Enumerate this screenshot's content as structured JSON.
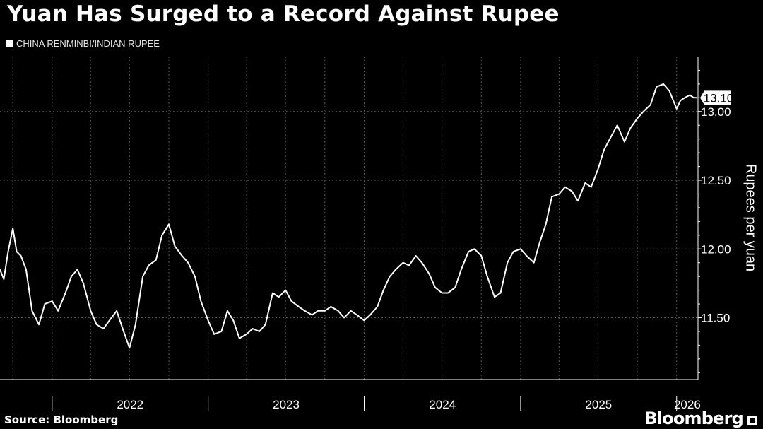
{
  "header": {
    "title": "Yuan Has Surged to a Record Against Rupee"
  },
  "footer": {
    "source": "Source: Bloomberg",
    "brand": "Bloomberg"
  },
  "chart_data": {
    "type": "line",
    "title": "Yuan Has Surged to a Record Against Rupee",
    "ylabel": "Rupees per yuan",
    "xlabel": "",
    "ylim": [
      11.05,
      13.4
    ],
    "xlim": [
      "2021-09-01",
      "2026-02-20"
    ],
    "x_tick_labels": [
      "2022",
      "2023",
      "2024",
      "2025",
      "2026"
    ],
    "y_ticks": [
      11.5,
      12.0,
      12.5,
      13.0
    ],
    "y_tick_labels": [
      "11.50",
      "12.00",
      "12.50",
      "13.00"
    ],
    "grid": true,
    "legend_position": "top-left",
    "last_value_label": "13.10",
    "colors": {
      "background": "#000000",
      "line": "#ffffff",
      "grid": "#5a5a5a"
    },
    "series": [
      {
        "name": "CHINA RENMINBI/INDIAN RUPEE",
        "x": [
          "2021-09-01",
          "2021-09-10",
          "2021-09-20",
          "2021-10-01",
          "2021-10-10",
          "2021-10-20",
          "2021-11-01",
          "2021-11-15",
          "2021-12-01",
          "2021-12-15",
          "2022-01-01",
          "2022-01-15",
          "2022-02-01",
          "2022-02-15",
          "2022-03-01",
          "2022-03-15",
          "2022-04-01",
          "2022-04-15",
          "2022-05-01",
          "2022-05-15",
          "2022-06-01",
          "2022-06-15",
          "2022-07-01",
          "2022-07-15",
          "2022-08-01",
          "2022-08-15",
          "2022-09-01",
          "2022-09-15",
          "2022-10-01",
          "2022-10-15",
          "2022-11-01",
          "2022-11-15",
          "2022-12-01",
          "2022-12-15",
          "2023-01-01",
          "2023-01-15",
          "2023-02-01",
          "2023-02-15",
          "2023-03-01",
          "2023-03-15",
          "2023-04-01",
          "2023-04-15",
          "2023-05-01",
          "2023-05-15",
          "2023-06-01",
          "2023-06-15",
          "2023-07-01",
          "2023-07-15",
          "2023-08-01",
          "2023-08-15",
          "2023-09-01",
          "2023-09-15",
          "2023-10-01",
          "2023-10-15",
          "2023-11-01",
          "2023-11-15",
          "2023-12-01",
          "2023-12-15",
          "2024-01-01",
          "2024-01-15",
          "2024-02-01",
          "2024-02-15",
          "2024-03-01",
          "2024-03-15",
          "2024-04-01",
          "2024-04-15",
          "2024-05-01",
          "2024-05-15",
          "2024-06-01",
          "2024-06-15",
          "2024-07-01",
          "2024-07-15",
          "2024-08-01",
          "2024-08-15",
          "2024-09-01",
          "2024-09-15",
          "2024-10-01",
          "2024-10-15",
          "2024-11-01",
          "2024-11-15",
          "2024-12-01",
          "2024-12-15",
          "2025-01-01",
          "2025-01-15",
          "2025-02-01",
          "2025-02-15",
          "2025-03-01",
          "2025-03-15",
          "2025-04-01",
          "2025-04-15",
          "2025-05-01",
          "2025-05-15",
          "2025-06-01",
          "2025-06-15",
          "2025-07-01",
          "2025-07-15",
          "2025-08-01",
          "2025-08-15",
          "2025-09-01",
          "2025-09-15",
          "2025-10-01",
          "2025-10-15",
          "2025-11-01",
          "2025-11-15",
          "2025-12-01",
          "2025-12-15",
          "2026-01-01",
          "2026-01-10",
          "2026-01-20",
          "2026-02-01",
          "2026-02-10",
          "2026-02-18"
        ],
        "values": [
          11.85,
          11.78,
          11.98,
          12.15,
          11.98,
          11.95,
          11.85,
          11.55,
          11.45,
          11.6,
          11.62,
          11.55,
          11.68,
          11.8,
          11.85,
          11.75,
          11.55,
          11.45,
          11.42,
          11.48,
          11.55,
          11.42,
          11.28,
          11.45,
          11.8,
          11.88,
          11.92,
          12.1,
          12.18,
          12.02,
          11.95,
          11.9,
          11.8,
          11.62,
          11.48,
          11.38,
          11.4,
          11.55,
          11.48,
          11.35,
          11.38,
          11.42,
          11.4,
          11.45,
          11.68,
          11.65,
          11.7,
          11.62,
          11.58,
          11.55,
          11.52,
          11.55,
          11.55,
          11.58,
          11.55,
          11.5,
          11.55,
          11.52,
          11.48,
          11.52,
          11.58,
          11.7,
          11.8,
          11.85,
          11.9,
          11.88,
          11.95,
          11.9,
          11.82,
          11.72,
          11.68,
          11.68,
          11.72,
          11.85,
          11.98,
          12.0,
          11.95,
          11.8,
          11.65,
          11.68,
          11.9,
          11.98,
          12.0,
          11.95,
          11.9,
          12.05,
          12.18,
          12.38,
          12.4,
          12.45,
          12.42,
          12.35,
          12.48,
          12.45,
          12.58,
          12.72,
          12.82,
          12.9,
          12.78,
          12.88,
          12.95,
          13.0,
          13.05,
          13.18,
          13.2,
          13.15,
          13.02,
          13.08,
          13.1,
          13.12,
          13.1,
          13.1
        ]
      }
    ]
  }
}
